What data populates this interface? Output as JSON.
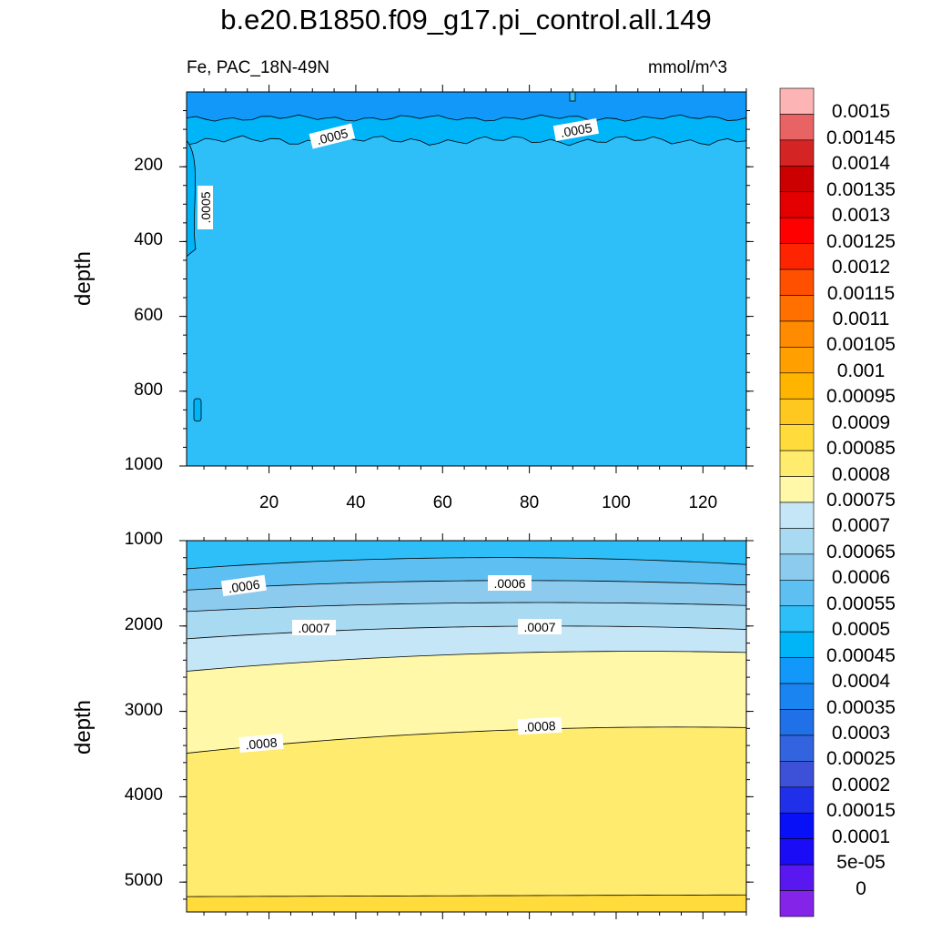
{
  "title": "b.e20.B1850.f09_g17.pi_control.all.149",
  "variable_label": "Fe, PAC_18N-49N",
  "units_label": "mmol/m^3",
  "colorbar": {
    "labels": [
      "0.0015",
      "0.00145",
      "0.0014",
      "0.00135",
      "0.0013",
      "0.00125",
      "0.0012",
      "0.00115",
      "0.0011",
      "0.00105",
      "0.001",
      "0.00095",
      "0.0009",
      "0.00085",
      "0.0008",
      "0.00075",
      "0.0007",
      "0.00065",
      "0.0006",
      "0.00055",
      "0.0005",
      "0.00045",
      "0.0004",
      "0.00035",
      "0.0003",
      "0.00025",
      "0.0002",
      "0.00015",
      "0.0001",
      "5e-05",
      "0"
    ],
    "colors_top_to_bottom": [
      "#fcb4b4",
      "#e86464",
      "#d42424",
      "#cc0000",
      "#e40000",
      "#ff0000",
      "#ff2400",
      "#ff5000",
      "#ff7000",
      "#ff8c00",
      "#ffa000",
      "#ffb400",
      "#ffc820",
      "#ffdc3c",
      "#ffeb6e",
      "#fff8a8",
      "#c4e6f6",
      "#a8daf2",
      "#8ccaee",
      "#5ec0f2",
      "#2ebef8",
      "#00b4f8",
      "#1298f8",
      "#1a84f0",
      "#2070e8",
      "#3264e0",
      "#3c50d8",
      "#2030e8",
      "#0810f8",
      "#1a0cf4",
      "#5a18f0",
      "#8424e8"
    ]
  },
  "chart_data": [
    {
      "type": "contour",
      "panel": "upper",
      "xlabel": "",
      "ylabel": "depth",
      "xlim": [
        1,
        130
      ],
      "ylim": [
        1000,
        0
      ],
      "xticks": [
        "20",
        "40",
        "60",
        "80",
        "100",
        "120"
      ],
      "yticks": [
        "200",
        "400",
        "600",
        "800",
        "1000"
      ],
      "contour_labels": [
        ".0005",
        ".0005",
        ".0005"
      ],
      "levels": [
        {
          "depth_top": 0,
          "depth_bottom": 70,
          "fe": 0.00045
        },
        {
          "depth_top": 70,
          "depth_bottom": 130,
          "fe": 0.0005
        },
        {
          "depth_top": 130,
          "depth_bottom": 1000,
          "fe": 0.0005
        }
      ]
    },
    {
      "type": "contour",
      "panel": "lower",
      "xlabel": "",
      "ylabel": "depth",
      "xlim": [
        1,
        130
      ],
      "ylim": [
        5350,
        1000
      ],
      "xticks": [
        "20",
        "40",
        "60",
        "80",
        "100",
        "120"
      ],
      "yticks": [
        "1000",
        "2000",
        "3000",
        "4000",
        "5000"
      ],
      "contour_labels": [
        ".0006",
        ".0006",
        ".0007",
        ".0007",
        ".0008",
        ".0008"
      ],
      "isolines": [
        {
          "fe": 0.00055,
          "depth_left": 1330,
          "depth_mid": 1200,
          "depth_right": 1280
        },
        {
          "fe": 0.0006,
          "depth_left": 1580,
          "depth_mid": 1470,
          "depth_right": 1520
        },
        {
          "fe": 0.00065,
          "depth_left": 1830,
          "depth_mid": 1730,
          "depth_right": 1760
        },
        {
          "fe": 0.0007,
          "depth_left": 2150,
          "depth_mid": 2010,
          "depth_right": 2040
        },
        {
          "fe": 0.00075,
          "depth_left": 2530,
          "depth_mid": 2330,
          "depth_right": 2310
        },
        {
          "fe": 0.0008,
          "depth_left": 3490,
          "depth_mid": 3240,
          "depth_right": 3190
        },
        {
          "fe": 0.00085,
          "depth_left": 5170,
          "depth_mid": 5160,
          "depth_right": 5150
        }
      ]
    }
  ]
}
